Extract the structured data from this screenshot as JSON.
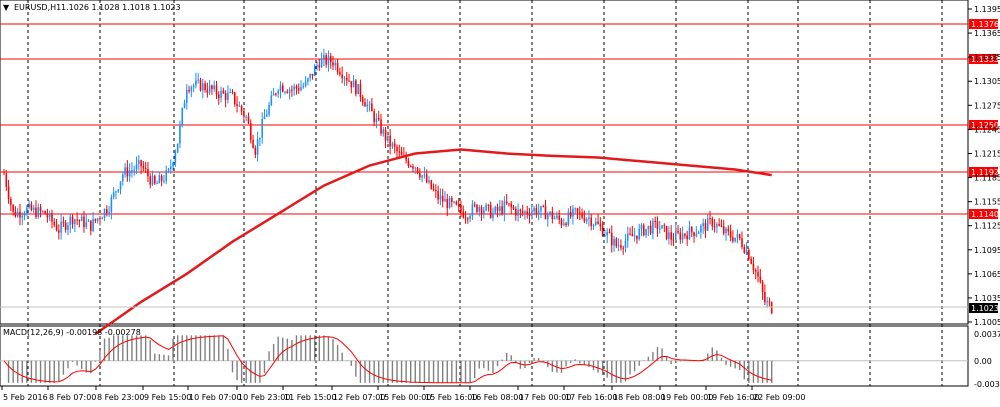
{
  "main_title": {
    "symbol": "EURUSD,H1",
    "ohlc": "1.1026 1.1028 1.1018 1.1023",
    "dropdown_glyph": "▼"
  },
  "macd_title": "MACD(12,26,9) -0.00198 -0.00278",
  "colors": {
    "background": "#ffffff",
    "grid": "#000000",
    "bull_candle": "#1e90ff",
    "bear_candle": "#ff0000",
    "level_line": "#ff0000",
    "ma_line": "#e31a1c",
    "macd_hist": "#808080",
    "macd_signal": "#ff0000",
    "current_price_bg": "#000000",
    "level_label_bg": "#ff0000"
  },
  "price_axis_labels": [
    "1.1395",
    "1.1365",
    "1.1335",
    "1.1305",
    "1.1275",
    "1.1245",
    "1.1215",
    "1.1185",
    "1.1155",
    "1.1125",
    "1.1095",
    "1.1065",
    "1.1035",
    "1.1005"
  ],
  "macd_axis_labels": [
    "0.00371",
    "0.00",
    "-0.00321"
  ],
  "time_axis_labels": [
    "5 Feb 2016",
    "8 Feb 07:00",
    "8 Feb 23:00",
    "9 Feb 15:00",
    "10 Feb 07:00",
    "10 Feb 23:00",
    "11 Feb 15:00",
    "12 Feb 07:00",
    "15 Feb 00:00",
    "15 Feb 16:00",
    "16 Feb 08:00",
    "17 Feb 00:00",
    "17 Feb 16:00",
    "18 Feb 08:00",
    "19 Feb 00:00",
    "19 Feb 16:00",
    "22 Feb 09:00"
  ],
  "levels": [
    "1.1376",
    "1.1333",
    "1.1250",
    "1.1192",
    "1.1140"
  ],
  "current_price": "1.1023",
  "chart_data": {
    "type": "candlestick",
    "symbol": "EURUSD",
    "timeframe": "H1",
    "ylim": [
      1.1005,
      1.14
    ],
    "close_path": [
      [
        0,
        1.119
      ],
      [
        4,
        1.114
      ],
      [
        10,
        1.1145
      ],
      [
        18,
        1.114
      ],
      [
        24,
        1.112
      ],
      [
        30,
        1.1135
      ],
      [
        38,
        1.1125
      ],
      [
        46,
        1.115
      ],
      [
        52,
        1.119
      ],
      [
        60,
        1.12
      ],
      [
        66,
        1.1175
      ],
      [
        72,
        1.119
      ],
      [
        76,
        1.123
      ],
      [
        80,
        1.13
      ],
      [
        86,
        1.13
      ],
      [
        94,
        1.129
      ],
      [
        100,
        1.1285
      ],
      [
        106,
        1.126
      ],
      [
        110,
        1.122
      ],
      [
        114,
        1.126
      ],
      [
        120,
        1.13
      ],
      [
        126,
        1.1295
      ],
      [
        132,
        1.13
      ],
      [
        138,
        1.133
      ],
      [
        144,
        1.133
      ],
      [
        150,
        1.131
      ],
      [
        156,
        1.129
      ],
      [
        162,
        1.126
      ],
      [
        168,
        1.123
      ],
      [
        174,
        1.121
      ],
      [
        180,
        1.12
      ],
      [
        186,
        1.1175
      ],
      [
        190,
        1.116
      ],
      [
        196,
        1.115
      ],
      [
        202,
        1.114
      ],
      [
        208,
        1.115
      ],
      [
        214,
        1.114
      ],
      [
        220,
        1.115
      ],
      [
        226,
        1.114
      ],
      [
        232,
        1.1145
      ],
      [
        238,
        1.114
      ],
      [
        244,
        1.113
      ],
      [
        250,
        1.114
      ],
      [
        256,
        1.1135
      ],
      [
        262,
        1.112
      ],
      [
        268,
        1.11
      ],
      [
        274,
        1.111
      ],
      [
        280,
        1.112
      ],
      [
        286,
        1.1125
      ],
      [
        292,
        1.111
      ],
      [
        298,
        1.1115
      ],
      [
        304,
        1.112
      ],
      [
        310,
        1.113
      ],
      [
        316,
        1.1115
      ],
      [
        322,
        1.1108
      ],
      [
        326,
        1.109
      ],
      [
        330,
        1.106
      ],
      [
        333,
        1.103
      ],
      [
        336,
        1.1023
      ]
    ],
    "ma_path": [
      [
        40,
        1.099
      ],
      [
        60,
        1.103
      ],
      [
        80,
        1.1065
      ],
      [
        100,
        1.1105
      ],
      [
        120,
        1.114
      ],
      [
        140,
        1.1175
      ],
      [
        160,
        1.12
      ],
      [
        180,
        1.1215
      ],
      [
        200,
        1.122
      ],
      [
        220,
        1.1215
      ],
      [
        240,
        1.1212
      ],
      [
        260,
        1.121
      ],
      [
        280,
        1.1205
      ],
      [
        300,
        1.12
      ],
      [
        320,
        1.1195
      ],
      [
        336,
        1.1188
      ]
    ],
    "macd_ylim": [
      -0.00321,
      0.00371
    ]
  }
}
